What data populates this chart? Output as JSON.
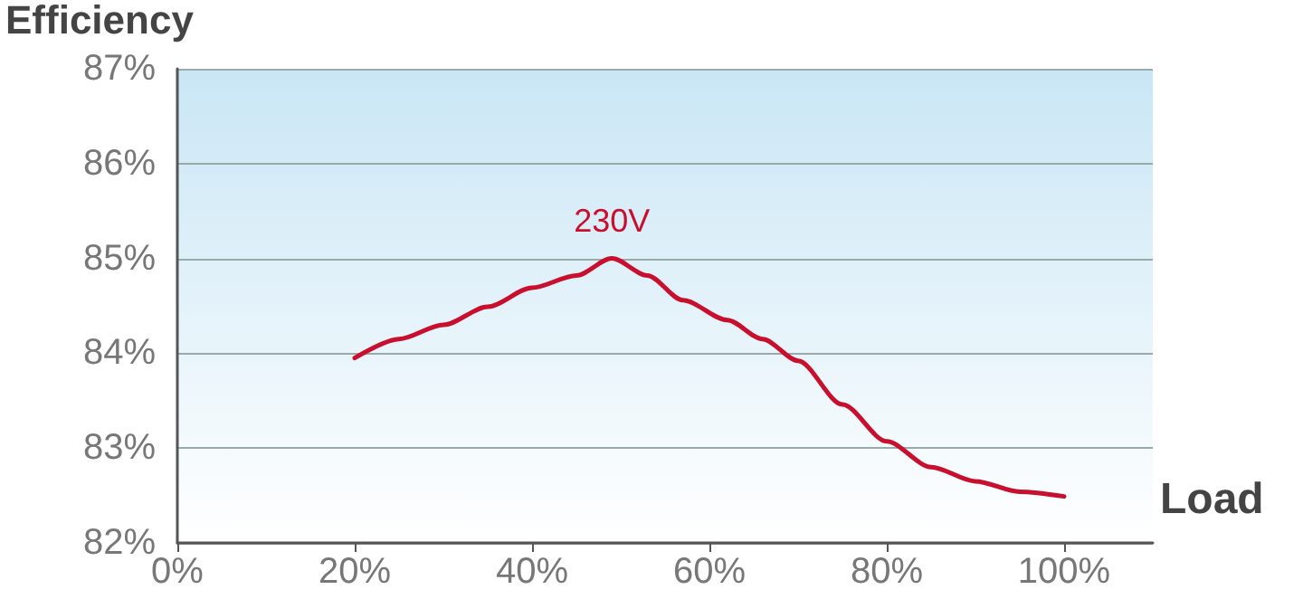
{
  "chart_data": {
    "type": "line",
    "xlabel": "Load",
    "ylabel": "Efficiency",
    "xlim": [
      0,
      110
    ],
    "xticks": [
      {
        "value": 0,
        "label": "0%"
      },
      {
        "value": 20,
        "label": "20%"
      },
      {
        "value": 40,
        "label": "40%"
      },
      {
        "value": 60,
        "label": "60%"
      },
      {
        "value": 80,
        "label": "80%"
      },
      {
        "value": 100,
        "label": "100%"
      }
    ],
    "ylim": [
      82,
      87
    ],
    "yticks": [
      {
        "value": 82,
        "label": "82%"
      },
      {
        "value": 83,
        "label": "83%"
      },
      {
        "value": 84,
        "label": "84%"
      },
      {
        "value": 85,
        "label": "85%"
      },
      {
        "value": 86,
        "label": "86%"
      },
      {
        "value": 87,
        "label": "87%"
      }
    ],
    "grid": "y",
    "marker": "none",
    "line_style": "solid",
    "series": [
      {
        "name": "230V",
        "color": "#c8102e",
        "x": [
          20,
          25,
          30,
          35,
          40,
          45,
          49,
          53,
          57,
          62,
          66,
          70,
          75,
          80,
          85,
          90,
          95,
          100
        ],
        "values": [
          83.95,
          84.15,
          84.3,
          84.49,
          84.69,
          84.82,
          85.0,
          84.82,
          84.56,
          84.35,
          84.15,
          83.92,
          83.46,
          83.07,
          82.8,
          82.65,
          82.54,
          82.49
        ]
      }
    ]
  }
}
